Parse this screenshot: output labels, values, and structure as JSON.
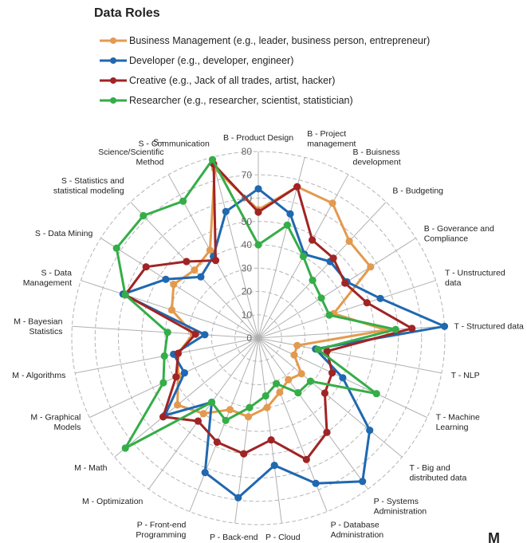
{
  "chart_data": {
    "type": "radar",
    "title": "Data Roles",
    "r_min": 0,
    "r_max": 80,
    "r_ticks": [
      "0",
      "10",
      "20",
      "30",
      "40",
      "50",
      "60",
      "70",
      "80"
    ],
    "grid": true,
    "legend_position": "top",
    "categories": [
      "B - Product Design",
      "B - Project management",
      "B - Buisness development",
      "B - Budgeting",
      "B - Goverance and Compliance",
      "T - Unstructured data",
      "T - Structured data",
      "T - NLP",
      "T - Machine Learning",
      "T - Big and distributed data",
      "P - Systems Administration",
      "P - Database Administration",
      "P - Cloud Management",
      "P - Back-end Programming",
      "P - Front-end Programming",
      "M - Optimization",
      "M - Math",
      "M - Graphical Models",
      "M - Algorithms",
      "M - Bayesian Statistics",
      "S - Data Management",
      "S - Data Mining",
      "S - Statistics and statistical modeling",
      "S - Science/Scientific Method",
      "S - Communication"
    ],
    "series": [
      {
        "name": "Business Management (e.g., leader, business person, entrepreneur)",
        "color": "#e39a4e",
        "values": [
          55,
          67,
          66,
          57,
          57,
          34,
          55,
          17,
          17,
          24,
          22,
          25,
          30,
          34,
          33,
          40,
          45,
          38,
          35,
          28,
          39,
          43,
          40,
          43,
          75
        ]
      },
      {
        "name": "Developer (e.g., developer, engineer)",
        "color": "#2068b0",
        "values": [
          64,
          55,
          41,
          45,
          45,
          55,
          80,
          25,
          40,
          62,
          76,
          67,
          55,
          69,
          62,
          34,
          52,
          35,
          37,
          23,
          61,
          47,
          36,
          40,
          56
        ]
      },
      {
        "name": "Creative (e.g., Jack of all trades, artist, hacker)",
        "color": "#a02424",
        "values": [
          54,
          67,
          48,
          47,
          44,
          49,
          66,
          30,
          35,
          37,
          50,
          56,
          44,
          50,
          48,
          44,
          53,
          39,
          35,
          27,
          60,
          57,
          45,
          38,
          77
        ]
      },
      {
        "name": "Researcher (e.g., researcher, scientist, statistician)",
        "color": "#35ad48",
        "values": [
          40,
          50,
          40,
          34,
          32,
          32,
          59,
          26,
          56,
          29,
          29,
          21,
          25,
          30,
          38,
          34,
          74,
          45,
          41,
          39,
          60,
          72,
          72,
          67,
          79
        ]
      }
    ]
  },
  "page": {
    "footer_glyph": "M"
  }
}
